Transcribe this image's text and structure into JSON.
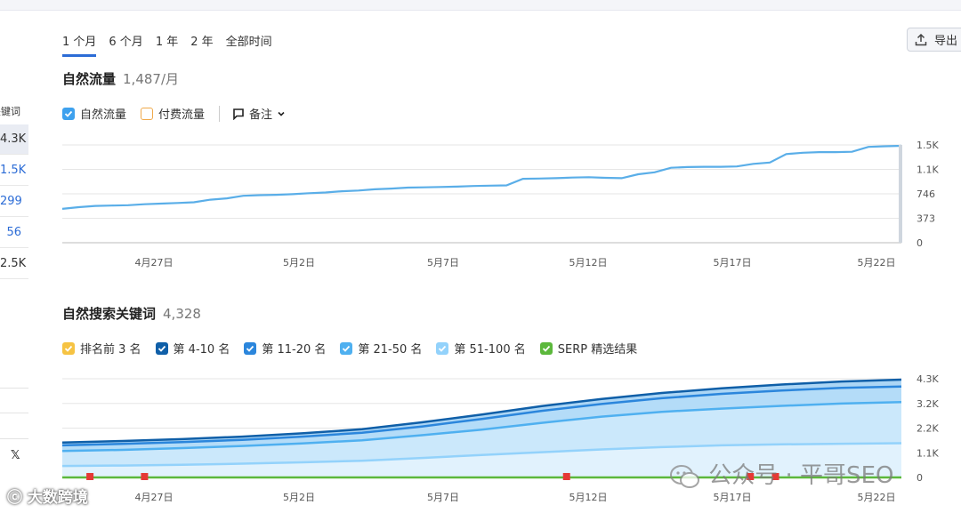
{
  "tabs": [
    "1 个月",
    "6 个月",
    "1 年",
    "2 年",
    "全部时间"
  ],
  "export_label": "导出",
  "left_col": {
    "header": "关键词",
    "rows": [
      "4.3K",
      "1.5K",
      "299",
      "56",
      "2.5K"
    ],
    "x_icon": "𝕏"
  },
  "traffic": {
    "title": "自然流量",
    "value": "1,487/月",
    "legend": [
      {
        "label": "自然流量",
        "checked": true,
        "color": "#3ea1ee"
      },
      {
        "label": "付费流量",
        "checked": false,
        "color": "#f0a94a"
      }
    ],
    "notes_label": "备注"
  },
  "keywords": {
    "title": "自然搜索关键词",
    "value": "4,328",
    "legend": [
      {
        "label": "排名前 3 名",
        "color": "#f6c343"
      },
      {
        "label": "第 4-10 名",
        "color": "#0f5fa8"
      },
      {
        "label": "第 11-20 名",
        "color": "#2b86dc"
      },
      {
        "label": "第 21-50 名",
        "color": "#4fb0f0"
      },
      {
        "label": "第 51-100 名",
        "color": "#93d2fb"
      },
      {
        "label": "SERP 精选结果",
        "color": "#5cb83c"
      }
    ]
  },
  "chart_data": [
    {
      "type": "area",
      "title": "自然流量",
      "x_labels": [
        "4月27日",
        "5月2日",
        "5月7日",
        "5月12日",
        "5月17日",
        "5月22日"
      ],
      "y_ticks": [
        "1.5K",
        "1.1K",
        "746",
        "373",
        "0"
      ],
      "ylim": [
        0,
        1500
      ],
      "series": [
        {
          "name": "自然流量",
          "color": "#5aaee8",
          "values": [
            520,
            545,
            565,
            570,
            575,
            590,
            600,
            610,
            620,
            660,
            680,
            720,
            730,
            735,
            745,
            760,
            770,
            790,
            800,
            820,
            830,
            845,
            850,
            855,
            860,
            870,
            875,
            880,
            980,
            985,
            990,
            1000,
            1005,
            995,
            990,
            1050,
            1080,
            1150,
            1160,
            1165,
            1165,
            1170,
            1210,
            1230,
            1360,
            1380,
            1390,
            1390,
            1395,
            1470,
            1480,
            1487
          ]
        }
      ]
    },
    {
      "type": "area",
      "title": "自然搜索关键词",
      "x_labels": [
        "4月27日",
        "5月2日",
        "5月7日",
        "5月12日",
        "5月17日",
        "5月22日"
      ],
      "y_ticks": [
        "4.3K",
        "3.2K",
        "2.2K",
        "1.1K",
        "0"
      ],
      "ylim": [
        0,
        4300
      ],
      "series": [
        {
          "name": "第 51-100 名",
          "color": "#93d2fb",
          "values": [
            500,
            520,
            550,
            600,
            660,
            730,
            850,
            980,
            1100,
            1220,
            1320,
            1400,
            1440,
            1470,
            1490
          ]
        },
        {
          "name": "第 21-50 名",
          "color": "#4fb0f0",
          "values": [
            1150,
            1200,
            1280,
            1370,
            1480,
            1620,
            1840,
            2080,
            2380,
            2650,
            2860,
            3000,
            3120,
            3220,
            3280
          ]
        },
        {
          "name": "第 11-20 名",
          "color": "#2b86dc",
          "values": [
            1400,
            1460,
            1540,
            1640,
            1780,
            1950,
            2220,
            2550,
            2900,
            3200,
            3450,
            3640,
            3790,
            3900,
            3960
          ]
        },
        {
          "name": "第 4-10 名",
          "color": "#0f5fa8",
          "values": [
            1520,
            1590,
            1670,
            1780,
            1920,
            2100,
            2400,
            2740,
            3110,
            3420,
            3680,
            3880,
            4050,
            4180,
            4260
          ]
        }
      ],
      "markers_x_fraction": [
        0.033,
        0.098,
        0.601,
        0.82,
        0.85
      ]
    }
  ]
}
